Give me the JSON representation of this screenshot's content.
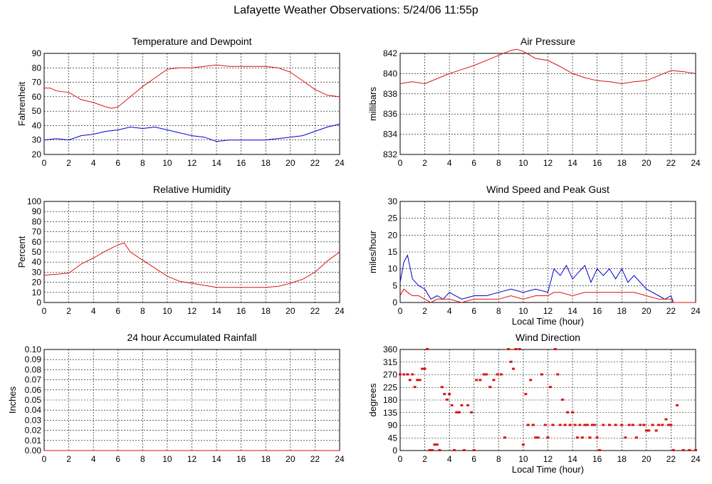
{
  "title": "Lafayette Weather Observations: 5/24/06 11:55p",
  "colors": {
    "red": "#dd1111",
    "blue": "#0000cc",
    "grid": "#000000"
  },
  "chart_data": [
    {
      "id": "temp",
      "type": "line",
      "title": "Temperature and Dewpoint",
      "ylabel": "Fahrenheit",
      "xlabel": "",
      "xlim": [
        0,
        24
      ],
      "ylim": [
        20,
        90
      ],
      "xticks": [
        0,
        2,
        4,
        6,
        8,
        10,
        12,
        14,
        16,
        18,
        20,
        22,
        24
      ],
      "yticks": [
        20,
        30,
        40,
        50,
        60,
        70,
        80,
        90
      ],
      "series": [
        {
          "color": "red",
          "x": [
            0,
            0.5,
            1,
            2,
            3,
            4,
            5,
            5.5,
            6,
            7,
            8,
            9,
            10,
            11,
            12,
            13,
            14,
            15,
            16,
            17,
            18,
            19,
            20,
            21,
            22,
            23,
            24
          ],
          "y": [
            66,
            66,
            64,
            63,
            58,
            56,
            53,
            52,
            53,
            60,
            67,
            73,
            79,
            80,
            80,
            81,
            82,
            81,
            81,
            81,
            81,
            80,
            77,
            71,
            65,
            61,
            60
          ]
        },
        {
          "color": "blue",
          "x": [
            0,
            1,
            2,
            3,
            4,
            5,
            6,
            7,
            8,
            9,
            10,
            11,
            12,
            13,
            14,
            15,
            16,
            17,
            18,
            19,
            20,
            21,
            22,
            23,
            24
          ],
          "y": [
            30,
            31,
            30,
            33,
            34,
            36,
            37,
            39,
            38,
            39,
            37,
            35,
            33,
            32,
            29,
            30,
            30,
            30,
            30,
            31,
            32,
            33,
            36,
            39,
            41
          ]
        }
      ]
    },
    {
      "id": "pressure",
      "type": "line",
      "title": "Air Pressure",
      "ylabel": "millibars",
      "xlabel": "",
      "xlim": [
        0,
        24
      ],
      "ylim": [
        832,
        842
      ],
      "xticks": [
        0,
        2,
        4,
        6,
        8,
        10,
        12,
        14,
        16,
        18,
        20,
        22,
        24
      ],
      "yticks": [
        832,
        834,
        836,
        838,
        840,
        842
      ],
      "series": [
        {
          "color": "red",
          "x": [
            0,
            1,
            2,
            3,
            4,
            5,
            6,
            7,
            8,
            9,
            9.5,
            10,
            11,
            12,
            13,
            14,
            15,
            16,
            17,
            18,
            19,
            20,
            21,
            22,
            23,
            24
          ],
          "y": [
            839,
            839.2,
            839,
            839.5,
            840,
            840.4,
            840.8,
            841.3,
            841.8,
            842.3,
            842.4,
            842.2,
            841.5,
            841.3,
            840.7,
            840,
            839.6,
            839.3,
            839.2,
            839,
            839.2,
            839.3,
            839.8,
            840.3,
            840.2,
            840
          ]
        }
      ]
    },
    {
      "id": "humidity",
      "type": "line",
      "title": "Relative Humidity",
      "ylabel": "Percent",
      "xlabel": "",
      "xlim": [
        0,
        24
      ],
      "ylim": [
        0,
        100
      ],
      "xticks": [
        0,
        2,
        4,
        6,
        8,
        10,
        12,
        14,
        16,
        18,
        20,
        22,
        24
      ],
      "yticks": [
        0,
        10,
        20,
        30,
        40,
        50,
        60,
        70,
        80,
        90,
        100
      ],
      "series": [
        {
          "color": "red",
          "x": [
            0,
            1,
            2,
            3,
            4,
            5,
            6,
            6.5,
            7,
            8,
            9,
            10,
            11,
            12,
            13,
            14,
            15,
            16,
            17,
            18,
            19,
            20,
            21,
            22,
            23,
            24
          ],
          "y": [
            27,
            28,
            29,
            38,
            44,
            51,
            57,
            59,
            50,
            42,
            34,
            26,
            21,
            19,
            17,
            15,
            15,
            15,
            15,
            15,
            16,
            19,
            23,
            30,
            41,
            50
          ]
        }
      ]
    },
    {
      "id": "wind",
      "type": "line",
      "title": "Wind Speed and Peak Gust",
      "ylabel": "miles/hour",
      "xlabel": "Local Time (hour)",
      "xlim": [
        0,
        24
      ],
      "ylim": [
        0,
        30
      ],
      "xticks": [
        0,
        2,
        4,
        6,
        8,
        10,
        12,
        14,
        16,
        18,
        20,
        22,
        24
      ],
      "yticks": [
        0,
        5,
        10,
        15,
        20,
        25,
        30
      ],
      "series": [
        {
          "color": "blue",
          "x": [
            0,
            0.3,
            0.6,
            1,
            1.5,
            2,
            2.5,
            3,
            3.5,
            4,
            5,
            6,
            7,
            8,
            9,
            10,
            11,
            12,
            12.5,
            13,
            13.5,
            14,
            14.5,
            15,
            15.5,
            16,
            16.5,
            17,
            17.5,
            18,
            18.5,
            19,
            19.5,
            20,
            21,
            21.5,
            22,
            22.2,
            23,
            24
          ],
          "y": [
            6,
            12,
            14,
            7,
            5,
            4,
            1,
            2,
            1,
            3,
            1,
            2,
            2,
            3,
            4,
            3,
            4,
            3,
            10,
            8,
            11,
            7,
            9,
            11,
            6,
            10,
            8,
            10,
            7,
            10,
            6,
            8,
            6,
            4,
            2,
            1,
            2,
            0,
            0,
            0
          ]
        },
        {
          "color": "red",
          "x": [
            0,
            0.3,
            0.6,
            1,
            1.5,
            2,
            2.5,
            3,
            4,
            5,
            6,
            7,
            8,
            9,
            10,
            11,
            12,
            12.5,
            13,
            14,
            15,
            16,
            17,
            18,
            19,
            20,
            21,
            22,
            22.2,
            24
          ],
          "y": [
            2,
            4,
            3,
            2,
            2,
            1,
            0,
            1,
            1,
            0,
            1,
            1,
            1,
            2,
            1,
            2,
            2,
            3,
            3,
            2,
            3,
            3,
            3,
            3,
            3,
            2,
            1,
            1,
            0,
            0
          ]
        }
      ]
    },
    {
      "id": "rain",
      "type": "line",
      "title": "24 hour Accumulated Rainfall",
      "ylabel": "Inches",
      "xlabel": "",
      "xlim": [
        0,
        24
      ],
      "ylim": [
        0,
        0.1
      ],
      "xticks": [
        0,
        2,
        4,
        6,
        8,
        10,
        12,
        14,
        16,
        18,
        20,
        22,
        24
      ],
      "yticks": [
        "0.00",
        "0.01",
        "0.02",
        "0.03",
        "0.04",
        "0.05",
        "0.06",
        "0.07",
        "0.08",
        "0.09",
        "0.10"
      ],
      "series": [
        {
          "color": "red",
          "x": [
            0,
            24
          ],
          "y": [
            0,
            0
          ]
        }
      ]
    },
    {
      "id": "winddir",
      "type": "scatter",
      "title": "Wind Direction",
      "ylabel": "degrees",
      "xlabel": "Local Time (hour)",
      "xlim": [
        0,
        24
      ],
      "ylim": [
        0,
        360
      ],
      "xticks": [
        0,
        2,
        4,
        6,
        8,
        10,
        12,
        14,
        16,
        18,
        20,
        22,
        24
      ],
      "yticks": [
        0,
        45,
        90,
        135,
        180,
        225,
        270,
        315,
        360
      ],
      "series": [
        {
          "color": "red",
          "x": [
            0,
            0.3,
            0.6,
            0.8,
            1,
            1.2,
            1.4,
            1.6,
            1.8,
            2,
            2.2,
            2.4,
            2.6,
            2.8,
            3,
            3.2,
            3.4,
            3.6,
            3.8,
            4,
            4.2,
            4.4,
            4.6,
            4.8,
            5,
            5.2,
            5.5,
            5.8,
            6,
            6.2,
            6.5,
            6.8,
            7,
            7.3,
            7.6,
            7.9,
            8.2,
            8.5,
            8.8,
            9,
            9.2,
            9.4,
            9.7,
            10,
            10.2,
            10.4,
            10.6,
            10.8,
            11,
            11.2,
            11.5,
            11.8,
            12,
            12.2,
            12.4,
            12.6,
            12.8,
            13,
            13.2,
            13.4,
            13.6,
            13.8,
            14,
            14.2,
            14.4,
            14.6,
            14.8,
            15,
            15.2,
            15.4,
            15.6,
            15.8,
            16,
            16.2,
            16.5,
            17,
            17.5,
            18,
            18.3,
            18.6,
            18.9,
            19.2,
            19.5,
            19.8,
            20,
            20.2,
            20.5,
            20.8,
            21,
            21.3,
            21.6,
            21.8,
            22,
            22.2,
            22.5,
            23,
            23.5,
            24
          ],
          "y": [
            270,
            270,
            270,
            250,
            270,
            225,
            250,
            250,
            290,
            290,
            360,
            0,
            0,
            20,
            20,
            0,
            225,
            200,
            180,
            200,
            160,
            0,
            135,
            135,
            160,
            0,
            160,
            135,
            0,
            250,
            250,
            270,
            270,
            225,
            250,
            270,
            270,
            45,
            360,
            315,
            290,
            360,
            360,
            20,
            200,
            90,
            250,
            90,
            45,
            45,
            270,
            90,
            45,
            225,
            90,
            360,
            270,
            90,
            180,
            90,
            135,
            90,
            135,
            90,
            45,
            90,
            45,
            90,
            90,
            45,
            90,
            90,
            45,
            0,
            90,
            90,
            90,
            90,
            45,
            90,
            90,
            45,
            90,
            90,
            70,
            70,
            90,
            70,
            90,
            90,
            110,
            90,
            90,
            0,
            160,
            0,
            0,
            0
          ]
        }
      ]
    }
  ]
}
